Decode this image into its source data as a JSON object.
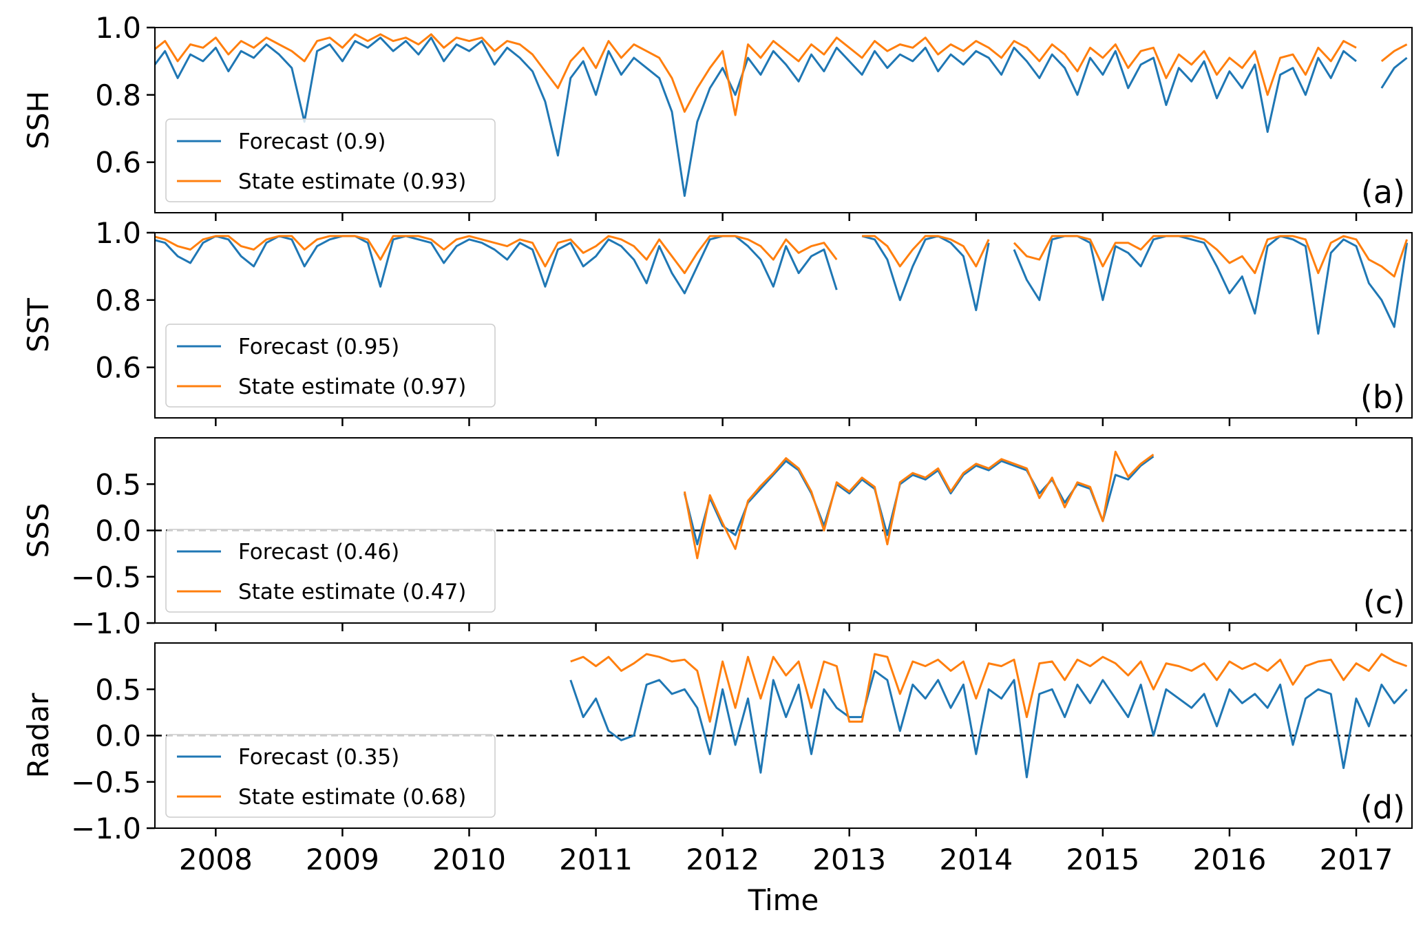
{
  "chart_data": [
    {
      "type": "line",
      "ylabel": "SSH",
      "panel_label": "(a)",
      "legend": "lower left",
      "grid": false,
      "xlim": [
        2007.52,
        2017.44
      ],
      "xticks": [
        2008,
        2009,
        2010,
        2011,
        2012,
        2013,
        2014,
        2015,
        2016,
        2017
      ],
      "ylim": [
        0.45,
        1.0
      ],
      "yticks": [
        0.6,
        0.8,
        {
          "value": 1,
          "label": "1.0"
        }
      ],
      "x": [
        2007.5,
        2007.6,
        2007.7,
        2007.8,
        2007.9,
        2008.0,
        2008.1,
        2008.2,
        2008.3,
        2008.4,
        2008.5,
        2008.6,
        2008.7,
        2008.8,
        2008.9,
        2009.0,
        2009.1,
        2009.2,
        2009.3,
        2009.4,
        2009.5,
        2009.6,
        2009.7,
        2009.8,
        2009.9,
        2010.0,
        2010.1,
        2010.2,
        2010.3,
        2010.4,
        2010.5,
        2010.6,
        2010.7,
        2010.8,
        2010.9,
        2011.0,
        2011.1,
        2011.2,
        2011.3,
        2011.4,
        2011.5,
        2011.6,
        2011.7,
        2011.8,
        2011.9,
        2012.0,
        2012.1,
        2012.2,
        2012.3,
        2012.4,
        2012.5,
        2012.6,
        2012.7,
        2012.8,
        2012.9,
        2013.0,
        2013.1,
        2013.2,
        2013.3,
        2013.4,
        2013.5,
        2013.6,
        2013.7,
        2013.8,
        2013.9,
        2014.0,
        2014.1,
        2014.2,
        2014.3,
        2014.4,
        2014.5,
        2014.6,
        2014.7,
        2014.8,
        2014.9,
        2015.0,
        2015.1,
        2015.2,
        2015.3,
        2015.4,
        2015.5,
        2015.6,
        2015.7,
        2015.8,
        2015.9,
        2016.0,
        2016.1,
        2016.2,
        2016.3,
        2016.4,
        2016.5,
        2016.6,
        2016.7,
        2016.8,
        2016.9,
        2017.0,
        2017.1,
        2017.2,
        2017.3,
        2017.4
      ],
      "series": [
        {
          "name": "Forecast (0.9)",
          "color": "#1f77b4",
          "values": [
            0.88,
            0.93,
            0.85,
            0.92,
            0.9,
            0.94,
            0.87,
            0.93,
            0.91,
            0.95,
            0.92,
            0.88,
            0.72,
            0.93,
            0.95,
            0.9,
            0.96,
            0.94,
            0.97,
            0.93,
            0.96,
            0.92,
            0.97,
            0.9,
            0.95,
            0.93,
            0.96,
            0.89,
            0.94,
            0.91,
            0.87,
            0.78,
            0.62,
            0.85,
            0.9,
            0.8,
            0.93,
            0.86,
            0.91,
            0.88,
            0.85,
            0.75,
            0.5,
            0.72,
            0.82,
            0.88,
            0.8,
            0.91,
            0.86,
            0.93,
            0.89,
            0.84,
            0.92,
            0.87,
            0.94,
            0.9,
            0.86,
            0.93,
            0.88,
            0.92,
            0.9,
            0.94,
            0.87,
            0.92,
            0.89,
            0.93,
            0.91,
            0.86,
            0.94,
            0.9,
            0.85,
            0.92,
            0.88,
            0.8,
            0.91,
            0.86,
            0.93,
            0.82,
            0.89,
            0.91,
            0.77,
            0.88,
            0.84,
            0.9,
            0.79,
            0.87,
            0.82,
            0.89,
            0.69,
            0.86,
            0.88,
            0.8,
            0.91,
            0.85,
            0.93,
            0.9,
            null,
            0.82,
            0.88,
            0.91
          ]
        },
        {
          "name": "State estimate (0.93)",
          "color": "#ff7f0e",
          "values": [
            0.93,
            0.96,
            0.9,
            0.95,
            0.94,
            0.97,
            0.92,
            0.96,
            0.94,
            0.97,
            0.95,
            0.93,
            0.9,
            0.96,
            0.97,
            0.94,
            0.98,
            0.96,
            0.98,
            0.96,
            0.97,
            0.95,
            0.98,
            0.94,
            0.97,
            0.96,
            0.97,
            0.93,
            0.96,
            0.95,
            0.92,
            0.87,
            0.82,
            0.9,
            0.94,
            0.88,
            0.96,
            0.91,
            0.95,
            0.93,
            0.91,
            0.85,
            0.75,
            0.82,
            0.88,
            0.93,
            0.74,
            0.95,
            0.91,
            0.96,
            0.93,
            0.9,
            0.95,
            0.92,
            0.97,
            0.94,
            0.91,
            0.96,
            0.93,
            0.95,
            0.94,
            0.97,
            0.92,
            0.95,
            0.93,
            0.96,
            0.94,
            0.91,
            0.96,
            0.94,
            0.9,
            0.95,
            0.92,
            0.87,
            0.94,
            0.91,
            0.95,
            0.88,
            0.93,
            0.94,
            0.85,
            0.92,
            0.89,
            0.93,
            0.86,
            0.91,
            0.88,
            0.93,
            0.8,
            0.91,
            0.92,
            0.86,
            0.94,
            0.9,
            0.96,
            0.94,
            null,
            0.9,
            0.93,
            0.95
          ]
        }
      ]
    },
    {
      "type": "line",
      "ylabel": "SST",
      "panel_label": "(b)",
      "legend": "lower left",
      "grid": false,
      "xlim": [
        2007.52,
        2017.44
      ],
      "xticks": [
        2008,
        2009,
        2010,
        2011,
        2012,
        2013,
        2014,
        2015,
        2016,
        2017
      ],
      "ylim": [
        0.45,
        1.0
      ],
      "yticks": [
        0.6,
        0.8,
        {
          "value": 1,
          "label": "1.0"
        }
      ],
      "x": [
        2007.5,
        2007.6,
        2007.7,
        2007.8,
        2007.9,
        2008.0,
        2008.1,
        2008.2,
        2008.3,
        2008.4,
        2008.5,
        2008.6,
        2008.7,
        2008.8,
        2008.9,
        2009.0,
        2009.1,
        2009.2,
        2009.3,
        2009.4,
        2009.5,
        2009.6,
        2009.7,
        2009.8,
        2009.9,
        2010.0,
        2010.1,
        2010.2,
        2010.3,
        2010.4,
        2010.5,
        2010.6,
        2010.7,
        2010.8,
        2010.9,
        2011.0,
        2011.1,
        2011.2,
        2011.3,
        2011.4,
        2011.5,
        2011.6,
        2011.7,
        2011.8,
        2011.9,
        2012.0,
        2012.1,
        2012.2,
        2012.3,
        2012.4,
        2012.5,
        2012.6,
        2012.7,
        2012.8,
        2012.9,
        2013.0,
        2013.1,
        2013.2,
        2013.3,
        2013.4,
        2013.5,
        2013.6,
        2013.7,
        2013.8,
        2013.9,
        2014.0,
        2014.1,
        2014.2,
        2014.3,
        2014.4,
        2014.5,
        2014.6,
        2014.7,
        2014.8,
        2014.9,
        2015.0,
        2015.1,
        2015.2,
        2015.3,
        2015.4,
        2015.5,
        2015.6,
        2015.7,
        2015.8,
        2015.9,
        2016.0,
        2016.1,
        2016.2,
        2016.3,
        2016.4,
        2016.5,
        2016.6,
        2016.7,
        2016.8,
        2016.9,
        2017.0,
        2017.1,
        2017.2,
        2017.3,
        2017.4
      ],
      "series": [
        {
          "name": "Forecast (0.95)",
          "color": "#1f77b4",
          "values": [
            0.98,
            0.97,
            0.93,
            0.91,
            0.97,
            0.99,
            0.98,
            0.93,
            0.9,
            0.97,
            0.99,
            0.98,
            0.9,
            0.96,
            0.98,
            0.99,
            0.99,
            0.97,
            0.84,
            0.98,
            0.99,
            0.98,
            0.97,
            0.91,
            0.96,
            0.98,
            0.97,
            0.95,
            0.92,
            0.97,
            0.95,
            0.84,
            0.95,
            0.97,
            0.9,
            0.93,
            0.98,
            0.96,
            0.92,
            0.85,
            0.96,
            0.88,
            0.82,
            0.9,
            0.98,
            0.99,
            0.99,
            0.96,
            0.92,
            0.84,
            0.96,
            0.88,
            0.93,
            0.95,
            0.83,
            null,
            0.99,
            0.98,
            0.92,
            0.8,
            0.9,
            0.98,
            0.99,
            0.97,
            0.93,
            0.77,
            0.97,
            null,
            0.95,
            0.86,
            0.8,
            0.98,
            0.99,
            0.99,
            0.97,
            0.8,
            0.96,
            0.94,
            0.9,
            0.98,
            0.99,
            0.99,
            0.98,
            0.97,
            0.9,
            0.82,
            0.87,
            0.76,
            0.96,
            0.99,
            0.98,
            0.96,
            0.7,
            0.94,
            0.98,
            0.96,
            0.85,
            0.8,
            0.72,
            0.97
          ]
        },
        {
          "name": "State estimate (0.97)",
          "color": "#ff7f0e",
          "values": [
            0.99,
            0.98,
            0.96,
            0.95,
            0.98,
            0.99,
            0.99,
            0.96,
            0.95,
            0.98,
            0.99,
            0.99,
            0.95,
            0.98,
            0.99,
            0.99,
            0.99,
            0.98,
            0.92,
            0.99,
            0.99,
            0.99,
            0.98,
            0.95,
            0.98,
            0.99,
            0.98,
            0.97,
            0.96,
            0.98,
            0.97,
            0.9,
            0.97,
            0.98,
            0.94,
            0.96,
            0.99,
            0.98,
            0.96,
            0.92,
            0.98,
            0.93,
            0.88,
            0.94,
            0.99,
            0.99,
            0.99,
            0.98,
            0.96,
            0.92,
            0.98,
            0.94,
            0.96,
            0.97,
            0.92,
            null,
            0.99,
            0.99,
            0.96,
            0.9,
            0.95,
            0.99,
            0.99,
            0.98,
            0.96,
            0.9,
            0.98,
            null,
            0.97,
            0.93,
            0.92,
            0.99,
            0.99,
            0.99,
            0.98,
            0.9,
            0.97,
            0.97,
            0.95,
            0.99,
            0.99,
            0.99,
            0.99,
            0.98,
            0.95,
            0.91,
            0.93,
            0.88,
            0.98,
            0.99,
            0.99,
            0.98,
            0.88,
            0.97,
            0.99,
            0.98,
            0.92,
            0.9,
            0.87,
            0.98
          ]
        }
      ]
    },
    {
      "type": "line",
      "ylabel": "SSS",
      "panel_label": "(c)",
      "legend": "lower left",
      "grid": false,
      "hline": 0,
      "xlim": [
        2007.52,
        2017.44
      ],
      "xticks": [
        2008,
        2009,
        2010,
        2011,
        2012,
        2013,
        2014,
        2015,
        2016,
        2017
      ],
      "ylim": [
        -1.0,
        1.0
      ],
      "yticks": [
        {
          "value": -1,
          "label": "−1.0"
        },
        {
          "value": -0.5,
          "label": "−0.5"
        },
        {
          "value": 0,
          "label": "0.0"
        },
        0.5
      ],
      "x": [
        2011.7,
        2011.8,
        2011.9,
        2012.0,
        2012.1,
        2012.2,
        2012.3,
        2012.4,
        2012.5,
        2012.6,
        2012.7,
        2012.8,
        2012.9,
        2013.0,
        2013.1,
        2013.2,
        2013.3,
        2013.4,
        2013.5,
        2013.6,
        2013.7,
        2013.8,
        2013.9,
        2014.0,
        2014.1,
        2014.2,
        2014.3,
        2014.4,
        2014.5,
        2014.6,
        2014.7,
        2014.8,
        2014.9,
        2015.0,
        2015.1,
        2015.2,
        2015.3,
        2015.4
      ],
      "series": [
        {
          "name": "Forecast (0.46)",
          "color": "#1f77b4",
          "values": [
            0.4,
            -0.15,
            0.35,
            0.05,
            -0.05,
            0.3,
            0.45,
            0.6,
            0.75,
            0.65,
            0.4,
            0.05,
            0.5,
            0.4,
            0.55,
            0.45,
            -0.05,
            0.5,
            0.6,
            0.55,
            0.65,
            0.4,
            0.6,
            0.7,
            0.65,
            0.75,
            0.7,
            0.65,
            0.4,
            0.55,
            0.3,
            0.5,
            0.45,
            0.1,
            0.6,
            0.55,
            0.7,
            0.8
          ]
        },
        {
          "name": "State estimate (0.47)",
          "color": "#ff7f0e",
          "values": [
            0.42,
            -0.3,
            0.38,
            0.08,
            -0.2,
            0.32,
            0.48,
            0.62,
            0.78,
            0.67,
            0.42,
            0.0,
            0.52,
            0.42,
            0.57,
            0.47,
            -0.15,
            0.52,
            0.62,
            0.57,
            0.67,
            0.42,
            0.62,
            0.72,
            0.67,
            0.77,
            0.72,
            0.67,
            0.35,
            0.57,
            0.25,
            0.52,
            0.47,
            0.1,
            0.85,
            0.58,
            0.72,
            0.82
          ]
        }
      ]
    },
    {
      "type": "line",
      "ylabel": "Radar",
      "panel_label": "(d)",
      "legend": "lower left",
      "grid": false,
      "hline": 0,
      "xlabel": "Time",
      "xlim": [
        2007.52,
        2017.44
      ],
      "xticks": [
        2008,
        2009,
        2010,
        2011,
        2012,
        2013,
        2014,
        2015,
        2016,
        2017
      ],
      "ylim": [
        -1.0,
        1.0
      ],
      "yticks": [
        {
          "value": -1,
          "label": "−1.0"
        },
        {
          "value": -0.5,
          "label": "−0.5"
        },
        {
          "value": 0,
          "label": "0.0"
        },
        0.5
      ],
      "x": [
        2010.8,
        2010.9,
        2011.0,
        2011.1,
        2011.2,
        2011.3,
        2011.4,
        2011.5,
        2011.6,
        2011.7,
        2011.8,
        2011.9,
        2012.0,
        2012.1,
        2012.2,
        2012.3,
        2012.4,
        2012.5,
        2012.6,
        2012.7,
        2012.8,
        2012.9,
        2013.0,
        2013.1,
        2013.2,
        2013.3,
        2013.4,
        2013.5,
        2013.6,
        2013.7,
        2013.8,
        2013.9,
        2014.0,
        2014.1,
        2014.2,
        2014.3,
        2014.4,
        2014.5,
        2014.6,
        2014.7,
        2014.8,
        2014.9,
        2015.0,
        2015.1,
        2015.2,
        2015.3,
        2015.4,
        2015.5,
        2015.6,
        2015.7,
        2015.8,
        2015.9,
        2016.0,
        2016.1,
        2016.2,
        2016.3,
        2016.4,
        2016.5,
        2016.6,
        2016.7,
        2016.8,
        2016.9,
        2017.0,
        2017.1,
        2017.2,
        2017.3,
        2017.4
      ],
      "series": [
        {
          "name": "Forecast (0.35)",
          "color": "#1f77b4",
          "values": [
            0.6,
            0.2,
            0.4,
            0.05,
            -0.05,
            0.0,
            0.55,
            0.6,
            0.45,
            0.5,
            0.3,
            -0.2,
            0.5,
            -0.1,
            0.4,
            -0.4,
            0.6,
            0.2,
            0.55,
            -0.2,
            0.5,
            0.3,
            0.2,
            0.2,
            0.7,
            0.6,
            0.05,
            0.55,
            0.4,
            0.6,
            0.3,
            0.55,
            -0.2,
            0.5,
            0.4,
            0.6,
            -0.45,
            0.45,
            0.5,
            0.2,
            0.55,
            0.35,
            0.6,
            0.4,
            0.2,
            0.55,
            0.0,
            0.5,
            0.4,
            0.3,
            0.45,
            0.1,
            0.5,
            0.35,
            0.45,
            0.3,
            0.55,
            -0.1,
            0.4,
            0.5,
            0.45,
            -0.35,
            0.4,
            0.1,
            0.55,
            0.35,
            0.5
          ]
        },
        {
          "name": "State estimate (0.68)",
          "color": "#ff7f0e",
          "values": [
            0.8,
            0.85,
            0.75,
            0.85,
            0.7,
            0.78,
            0.88,
            0.85,
            0.8,
            0.82,
            0.7,
            0.15,
            0.8,
            0.3,
            0.85,
            0.4,
            0.85,
            0.65,
            0.8,
            0.3,
            0.8,
            0.75,
            0.15,
            0.15,
            0.88,
            0.85,
            0.45,
            0.8,
            0.75,
            0.82,
            0.7,
            0.8,
            0.4,
            0.78,
            0.75,
            0.82,
            0.2,
            0.78,
            0.8,
            0.6,
            0.82,
            0.75,
            0.85,
            0.78,
            0.65,
            0.8,
            0.5,
            0.78,
            0.75,
            0.7,
            0.78,
            0.6,
            0.8,
            0.72,
            0.78,
            0.7,
            0.82,
            0.55,
            0.75,
            0.8,
            0.82,
            0.6,
            0.78,
            0.7,
            0.88,
            0.8,
            0.75
          ]
        }
      ]
    }
  ]
}
